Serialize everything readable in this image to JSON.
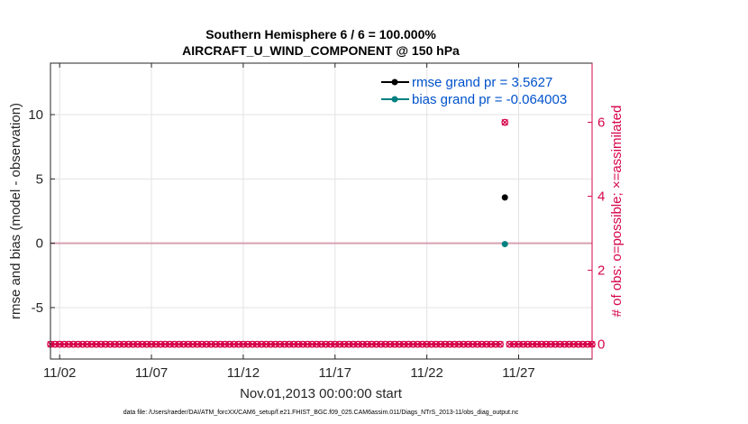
{
  "chart_data": {
    "type": "line",
    "title": [
      "Southern Hemisphere 6 / 6 = 100.000%",
      "AIRCRAFT_U_WIND_COMPONENT @ 150 hPa"
    ],
    "xlabel": "Nov.01,2013 00:00:00 start",
    "ylabel": "rmse and bias (model - observation)",
    "y2label": "# of obs: o=possible; ×=assimilated",
    "footnote": "data file: /Users/raeder/DAI/ATM_forcXX/CAM6_setup/f.e21.FHIST_BGC.f09_025.CAM6assim.011/Diags_NTrS_2013-11/obs_diag_output.nc",
    "xlim": [
      0.5,
      30.0
    ],
    "ylim": [
      -9,
      14
    ],
    "y2lim": [
      -0.4,
      7.6
    ],
    "x_ticks": [
      1.0,
      6.0,
      11.0,
      16.0,
      21.0,
      26.0
    ],
    "x_tick_labels": [
      "11/02",
      "11/07",
      "11/12",
      "11/17",
      "11/22",
      "11/27"
    ],
    "y_ticks": [
      -5,
      0,
      5,
      10
    ],
    "y_tick_labels": [
      "-5",
      "0",
      "5",
      "10"
    ],
    "y2_ticks": [
      0,
      2,
      4,
      6
    ],
    "y2_tick_labels": [
      "0",
      "2",
      "4",
      "6"
    ],
    "grid": true,
    "legend_position": "top-right",
    "series": [
      {
        "name": "rmse grand pr = 3.5627",
        "axis": "left",
        "color": "#000000",
        "x": [
          25.25
        ],
        "y": [
          3.5627
        ]
      },
      {
        "name": "bias grand pr = -0.064003",
        "axis": "left",
        "color": "#008080",
        "x": [
          25.25
        ],
        "y": [
          -0.064003
        ]
      }
    ],
    "obs_counts": {
      "axis": "right",
      "color": "#d6044a",
      "x_start": 0.5,
      "x_end": 30.0,
      "x_step": 0.25,
      "default_value": 0,
      "nonzero": [
        {
          "x": 25.25,
          "possible": 6,
          "assimilated": 6
        }
      ]
    },
    "zero_line": {
      "y": 0,
      "color": "#d9a0b0"
    }
  }
}
